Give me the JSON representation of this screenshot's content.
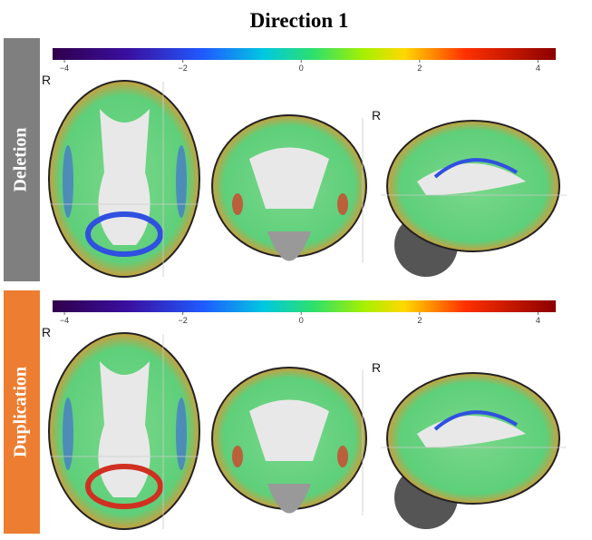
{
  "title": "Direction 1",
  "colorbar": {
    "lim": [
      -4.2,
      4.3
    ],
    "ticks": [
      {
        "value": -4,
        "label": "−4"
      },
      {
        "value": -2,
        "label": "−2"
      },
      {
        "value": 0,
        "label": "0"
      },
      {
        "value": 2,
        "label": "2"
      },
      {
        "value": 4,
        "label": "4"
      }
    ]
  },
  "panels": [
    {
      "label": "Deletion",
      "color": "#7f7f7f",
      "markers": [
        "R",
        "R"
      ]
    },
    {
      "label": "Duplication",
      "color": "#ed7d31",
      "markers": [
        "R",
        "R"
      ]
    }
  ]
}
